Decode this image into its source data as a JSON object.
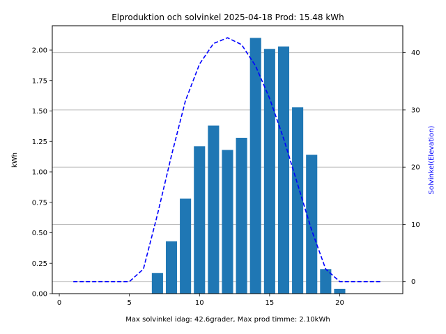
{
  "chart_data": {
    "type": "bar",
    "title": "Elproduktion och solvinkel 2025-04-18 Prod: 15.48 kWh",
    "xlabel": "Max solvinkel idag: 42.6grader, Max prod timme: 2.10kWh",
    "ylabel": "kWh",
    "y2label": "Solvinkel(Elevation)",
    "xlim": [
      -0.5,
      24.5
    ],
    "ylim": [
      0,
      2.2
    ],
    "y2lim": [
      -2.1,
      44.7
    ],
    "xticks": [
      0,
      5,
      10,
      15,
      20
    ],
    "yticks": [
      0.0,
      0.25,
      0.5,
      0.75,
      1.0,
      1.25,
      1.5,
      1.75,
      2.0
    ],
    "ytick_labels": [
      "0.00",
      "0.25",
      "0.50",
      "0.75",
      "1.00",
      "1.25",
      "1.50",
      "1.75",
      "2.00"
    ],
    "y2ticks": [
      0,
      10,
      20,
      30,
      40
    ],
    "grid": "horizontal, right axis",
    "series": [
      {
        "type": "bar",
        "axis": "left",
        "color": "#1f77b4",
        "x": [
          7,
          8,
          9,
          10,
          11,
          12,
          13,
          14,
          15,
          16,
          17,
          18,
          19,
          20
        ],
        "values": [
          0.17,
          0.43,
          0.78,
          1.21,
          1.38,
          1.18,
          1.28,
          2.1,
          2.01,
          2.03,
          1.53,
          1.14,
          0.2,
          0.04
        ]
      },
      {
        "type": "line",
        "axis": "right",
        "style": "dashed",
        "color": "#0000ff",
        "x": [
          1,
          2,
          3,
          4,
          5,
          6,
          7,
          8,
          9,
          10,
          11,
          12,
          13,
          14,
          15,
          16,
          17,
          18,
          19,
          20,
          21,
          22,
          23
        ],
        "values": [
          0,
          0,
          0,
          0,
          0,
          2.2,
          11.7,
          22.0,
          31.6,
          38.0,
          41.6,
          42.6,
          41.4,
          37.7,
          32.0,
          25.0,
          17.0,
          9.0,
          2.2,
          0,
          0,
          0,
          0
        ]
      }
    ]
  }
}
